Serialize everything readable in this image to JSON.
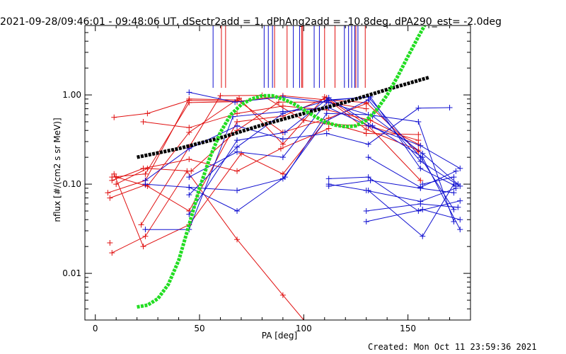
{
  "header": {
    "title": "2021-09-28/09:46:01 - 09:48:06 UT, dSectr2add = 1, dPhAng2add = -10.8deg, dPA290_est= -2.0deg"
  },
  "footer": {
    "created": "Created: Mon Oct 11 23:59:36 2021"
  },
  "colors": {
    "red": "#e01010",
    "blue": "#1010d0",
    "black": "#000000",
    "green": "#22dd22"
  },
  "chart_data": {
    "type": "line",
    "title": "2021-09-28/09:46:01 - 09:48:06 UT, dSectr2add = 1, dPhAng2add = -10.8deg, dPA290_est= -2.0deg",
    "xlabel": "PA [deg]",
    "ylabel": "nflux [#/(cm2 s sr MeV)]",
    "xlim": [
      -5,
      180
    ],
    "ylim": [
      0.003,
      6.0
    ],
    "yscale": "log",
    "xticks": [
      0,
      50,
      100,
      150
    ],
    "xtick_labels": [
      "0",
      "50",
      "100",
      "150"
    ],
    "yticks": [
      0.01,
      0.1,
      1.0
    ],
    "ytick_labels": [
      "0.01",
      "0.10",
      "1.00"
    ],
    "grid": false,
    "vlines": {
      "y_range": [
        1.2,
        6.0
      ],
      "red": [
        60.5,
        62.5,
        86,
        92,
        99,
        99.5,
        110,
        115,
        125,
        129.5
      ],
      "blue": [
        56.5,
        81,
        83,
        85,
        95,
        98,
        105,
        107.5,
        119.5,
        121.5,
        123,
        124.5,
        126
      ]
    },
    "series": [
      {
        "color": "red",
        "points": [
          [
            6,
            0.08
          ],
          [
            24,
            0.11
          ],
          [
            45,
            0.9
          ],
          [
            68,
            0.88
          ],
          [
            90,
            0.38
          ],
          [
            112,
            0.55
          ],
          [
            130,
            0.8
          ]
        ]
      },
      {
        "color": "red",
        "points": [
          [
            8,
            0.12
          ],
          [
            24,
            0.13
          ],
          [
            45,
            0.82
          ],
          [
            68,
            0.84
          ],
          [
            90,
            0.98
          ],
          [
            111,
            0.88
          ],
          [
            130,
            0.82
          ],
          [
            155,
            0.23
          ]
        ]
      },
      {
        "color": "red",
        "points": [
          [
            7,
            0.07
          ],
          [
            24,
            0.098
          ],
          [
            45,
            0.05
          ],
          [
            68,
            0.5
          ],
          [
            90,
            0.58
          ],
          [
            111,
            0.93
          ],
          [
            131,
            0.45
          ],
          [
            155,
            0.31
          ]
        ]
      },
      {
        "color": "red",
        "points": [
          [
            8,
            0.11
          ],
          [
            23,
            0.15
          ],
          [
            45,
            0.19
          ],
          [
            68,
            0.14
          ],
          [
            89,
            0.25
          ],
          [
            112,
            0.42
          ]
        ]
      },
      {
        "color": "red",
        "points": [
          [
            9,
            0.56
          ],
          [
            25,
            0.62
          ],
          [
            45,
            0.87
          ],
          [
            70,
            0.85
          ]
        ]
      },
      {
        "color": "red",
        "points": [
          [
            10,
            0.12
          ],
          [
            25,
            0.095
          ],
          [
            45,
            0.38
          ],
          [
            69,
            0.92
          ],
          [
            90,
            0.28
          ],
          [
            110,
            0.95
          ],
          [
            130,
            0.41
          ],
          [
            155,
            0.24
          ]
        ]
      },
      {
        "color": "red",
        "points": [
          [
            8,
            0.017
          ],
          [
            24,
            0.026
          ],
          [
            44,
            0.14
          ],
          [
            68,
            0.024
          ],
          [
            90,
            0.0057
          ],
          [
            100,
            0.003
          ]
        ]
      },
      {
        "color": "red",
        "points": [
          [
            7,
            0.022
          ]
        ]
      },
      {
        "color": "red",
        "points": [
          [
            22,
            0.035
          ],
          [
            45,
            0.26
          ],
          [
            60,
            0.98
          ],
          [
            80,
            0.99
          ],
          [
            100,
            0.52
          ],
          [
            112,
            0.47
          ],
          [
            131,
            0.45
          ],
          [
            156,
            0.11
          ]
        ]
      },
      {
        "color": "red",
        "points": [
          [
            9,
            0.13
          ],
          [
            23,
            0.02
          ],
          [
            45,
            0.035
          ],
          [
            70,
            0.22
          ],
          [
            90,
            0.13
          ],
          [
            110,
            0.5
          ],
          [
            130,
            0.37
          ],
          [
            155,
            0.36
          ]
        ]
      },
      {
        "color": "red",
        "points": [
          [
            10,
            0.1
          ],
          [
            25,
            0.15
          ],
          [
            46,
            0.14
          ],
          [
            68,
            0.4
          ],
          [
            88,
            0.83
          ],
          [
            111,
            0.83
          ],
          [
            130,
            0.7
          ]
        ]
      },
      {
        "color": "red",
        "points": [
          [
            23,
            0.5
          ],
          [
            45,
            0.43
          ],
          [
            68,
            0.62
          ],
          [
            90,
            0.75
          ],
          [
            111,
            0.68
          ],
          [
            132,
            0.52
          ],
          [
            155,
            0.28
          ]
        ]
      },
      {
        "color": "blue",
        "points": [
          [
            24,
            0.031
          ],
          [
            45,
            0.031
          ],
          [
            66,
            0.57
          ],
          [
            90,
            0.65
          ],
          [
            112,
            0.72
          ],
          [
            131,
            0.45
          ],
          [
            156,
            0.27
          ],
          [
            175,
            0.15
          ]
        ]
      },
      {
        "color": "blue",
        "points": [
          [
            45,
            1.07
          ],
          [
            67,
            0.83
          ],
          [
            90,
            0.95
          ],
          [
            112,
            0.82
          ],
          [
            133,
            0.58
          ],
          [
            157,
            0.22
          ],
          [
            174,
            0.1
          ]
        ]
      },
      {
        "color": "blue",
        "points": [
          [
            45,
            0.076
          ],
          [
            68,
            0.26
          ],
          [
            90,
            0.62
          ],
          [
            111,
            0.86
          ],
          [
            131,
            0.95
          ],
          [
            156,
            0.2
          ],
          [
            172,
            0.052
          ]
        ]
      },
      {
        "color": "blue",
        "points": [
          [
            45,
            0.046
          ],
          [
            68,
            0.31
          ],
          [
            91,
            0.38
          ],
          [
            112,
            0.93
          ],
          [
            133,
            0.45
          ],
          [
            157,
            0.2
          ],
          [
            175,
            0.031
          ]
        ]
      },
      {
        "color": "blue",
        "points": [
          [
            45,
            0.092
          ],
          [
            68,
            0.085
          ],
          [
            90,
            0.115
          ],
          [
            110,
            0.5
          ],
          [
            131,
            0.88
          ],
          [
            156,
            0.18
          ],
          [
            175,
            0.095
          ]
        ]
      },
      {
        "color": "blue",
        "points": [
          [
            45,
            0.12
          ],
          [
            68,
            0.23
          ],
          [
            90,
            0.2
          ],
          [
            112,
            0.88
          ],
          [
            132,
            0.95
          ],
          [
            156,
            0.15
          ],
          [
            173,
            0.095
          ]
        ]
      },
      {
        "color": "blue",
        "points": [
          [
            24,
            0.1
          ],
          [
            45,
            0.092
          ],
          [
            68,
            0.05
          ],
          [
            91,
            0.12
          ],
          [
            111,
            0.62
          ],
          [
            131,
            0.6
          ],
          [
            155,
            0.5
          ],
          [
            172,
            0.038
          ]
        ]
      },
      {
        "color": "blue",
        "points": [
          [
            24,
            0.11
          ],
          [
            45,
            0.25
          ],
          [
            68,
            0.45
          ],
          [
            90,
            0.32
          ],
          [
            111,
            0.37
          ],
          [
            131,
            0.28
          ],
          [
            155,
            0.71
          ],
          [
            170,
            0.72
          ]
        ]
      },
      {
        "color": "blue",
        "points": [
          [
            112,
            0.115
          ],
          [
            131,
            0.12
          ],
          [
            155,
            0.05
          ],
          [
            175,
            0.065
          ]
        ]
      },
      {
        "color": "blue",
        "points": [
          [
            112,
            0.1
          ],
          [
            130,
            0.085
          ],
          [
            156,
            0.064
          ],
          [
            173,
            0.09
          ]
        ]
      },
      {
        "color": "blue",
        "points": [
          [
            112,
            0.095
          ],
          [
            132,
            0.11
          ],
          [
            156,
            0.09
          ],
          [
            172,
            0.08
          ]
        ]
      },
      {
        "color": "blue",
        "points": [
          [
            130,
            0.05
          ],
          [
            156,
            0.06
          ],
          [
            174,
            0.055
          ]
        ]
      },
      {
        "color": "blue",
        "points": [
          [
            130,
            0.038
          ],
          [
            157,
            0.052
          ],
          [
            175,
            0.04
          ]
        ]
      },
      {
        "color": "blue",
        "points": [
          [
            131,
            0.085
          ],
          [
            157,
            0.026
          ],
          [
            172,
            0.1
          ]
        ]
      },
      {
        "color": "blue",
        "points": [
          [
            131,
            0.2
          ],
          [
            156,
            0.092
          ],
          [
            173,
            0.14
          ]
        ]
      },
      {
        "color": "blue",
        "points": [
          [
            157,
            0.1
          ],
          [
            172,
            0.12
          ]
        ]
      }
    ],
    "fits": [
      {
        "color": "black",
        "points": [
          [
            20,
            0.2
          ],
          [
            40,
            0.25
          ],
          [
            60,
            0.33
          ],
          [
            80,
            0.46
          ],
          [
            100,
            0.62
          ],
          [
            120,
            0.83
          ],
          [
            140,
            1.15
          ],
          [
            160,
            1.57
          ]
        ]
      },
      {
        "color": "green",
        "points": [
          [
            20,
            0.0042
          ],
          [
            25,
            0.0044
          ],
          [
            30,
            0.0052
          ],
          [
            35,
            0.0075
          ],
          [
            40,
            0.014
          ],
          [
            45,
            0.035
          ],
          [
            50,
            0.09
          ],
          [
            55,
            0.2
          ],
          [
            60,
            0.38
          ],
          [
            65,
            0.6
          ],
          [
            70,
            0.78
          ],
          [
            75,
            0.9
          ],
          [
            80,
            0.98
          ],
          [
            85,
            0.98
          ],
          [
            90,
            0.9
          ],
          [
            95,
            0.8
          ],
          [
            100,
            0.68
          ],
          [
            105,
            0.58
          ],
          [
            110,
            0.5
          ],
          [
            115,
            0.46
          ],
          [
            120,
            0.44
          ],
          [
            125,
            0.45
          ],
          [
            130,
            0.52
          ],
          [
            135,
            0.68
          ],
          [
            140,
            1.0
          ],
          [
            145,
            1.6
          ],
          [
            150,
            2.7
          ],
          [
            155,
            4.5
          ],
          [
            158,
            6.0
          ]
        ]
      }
    ]
  }
}
